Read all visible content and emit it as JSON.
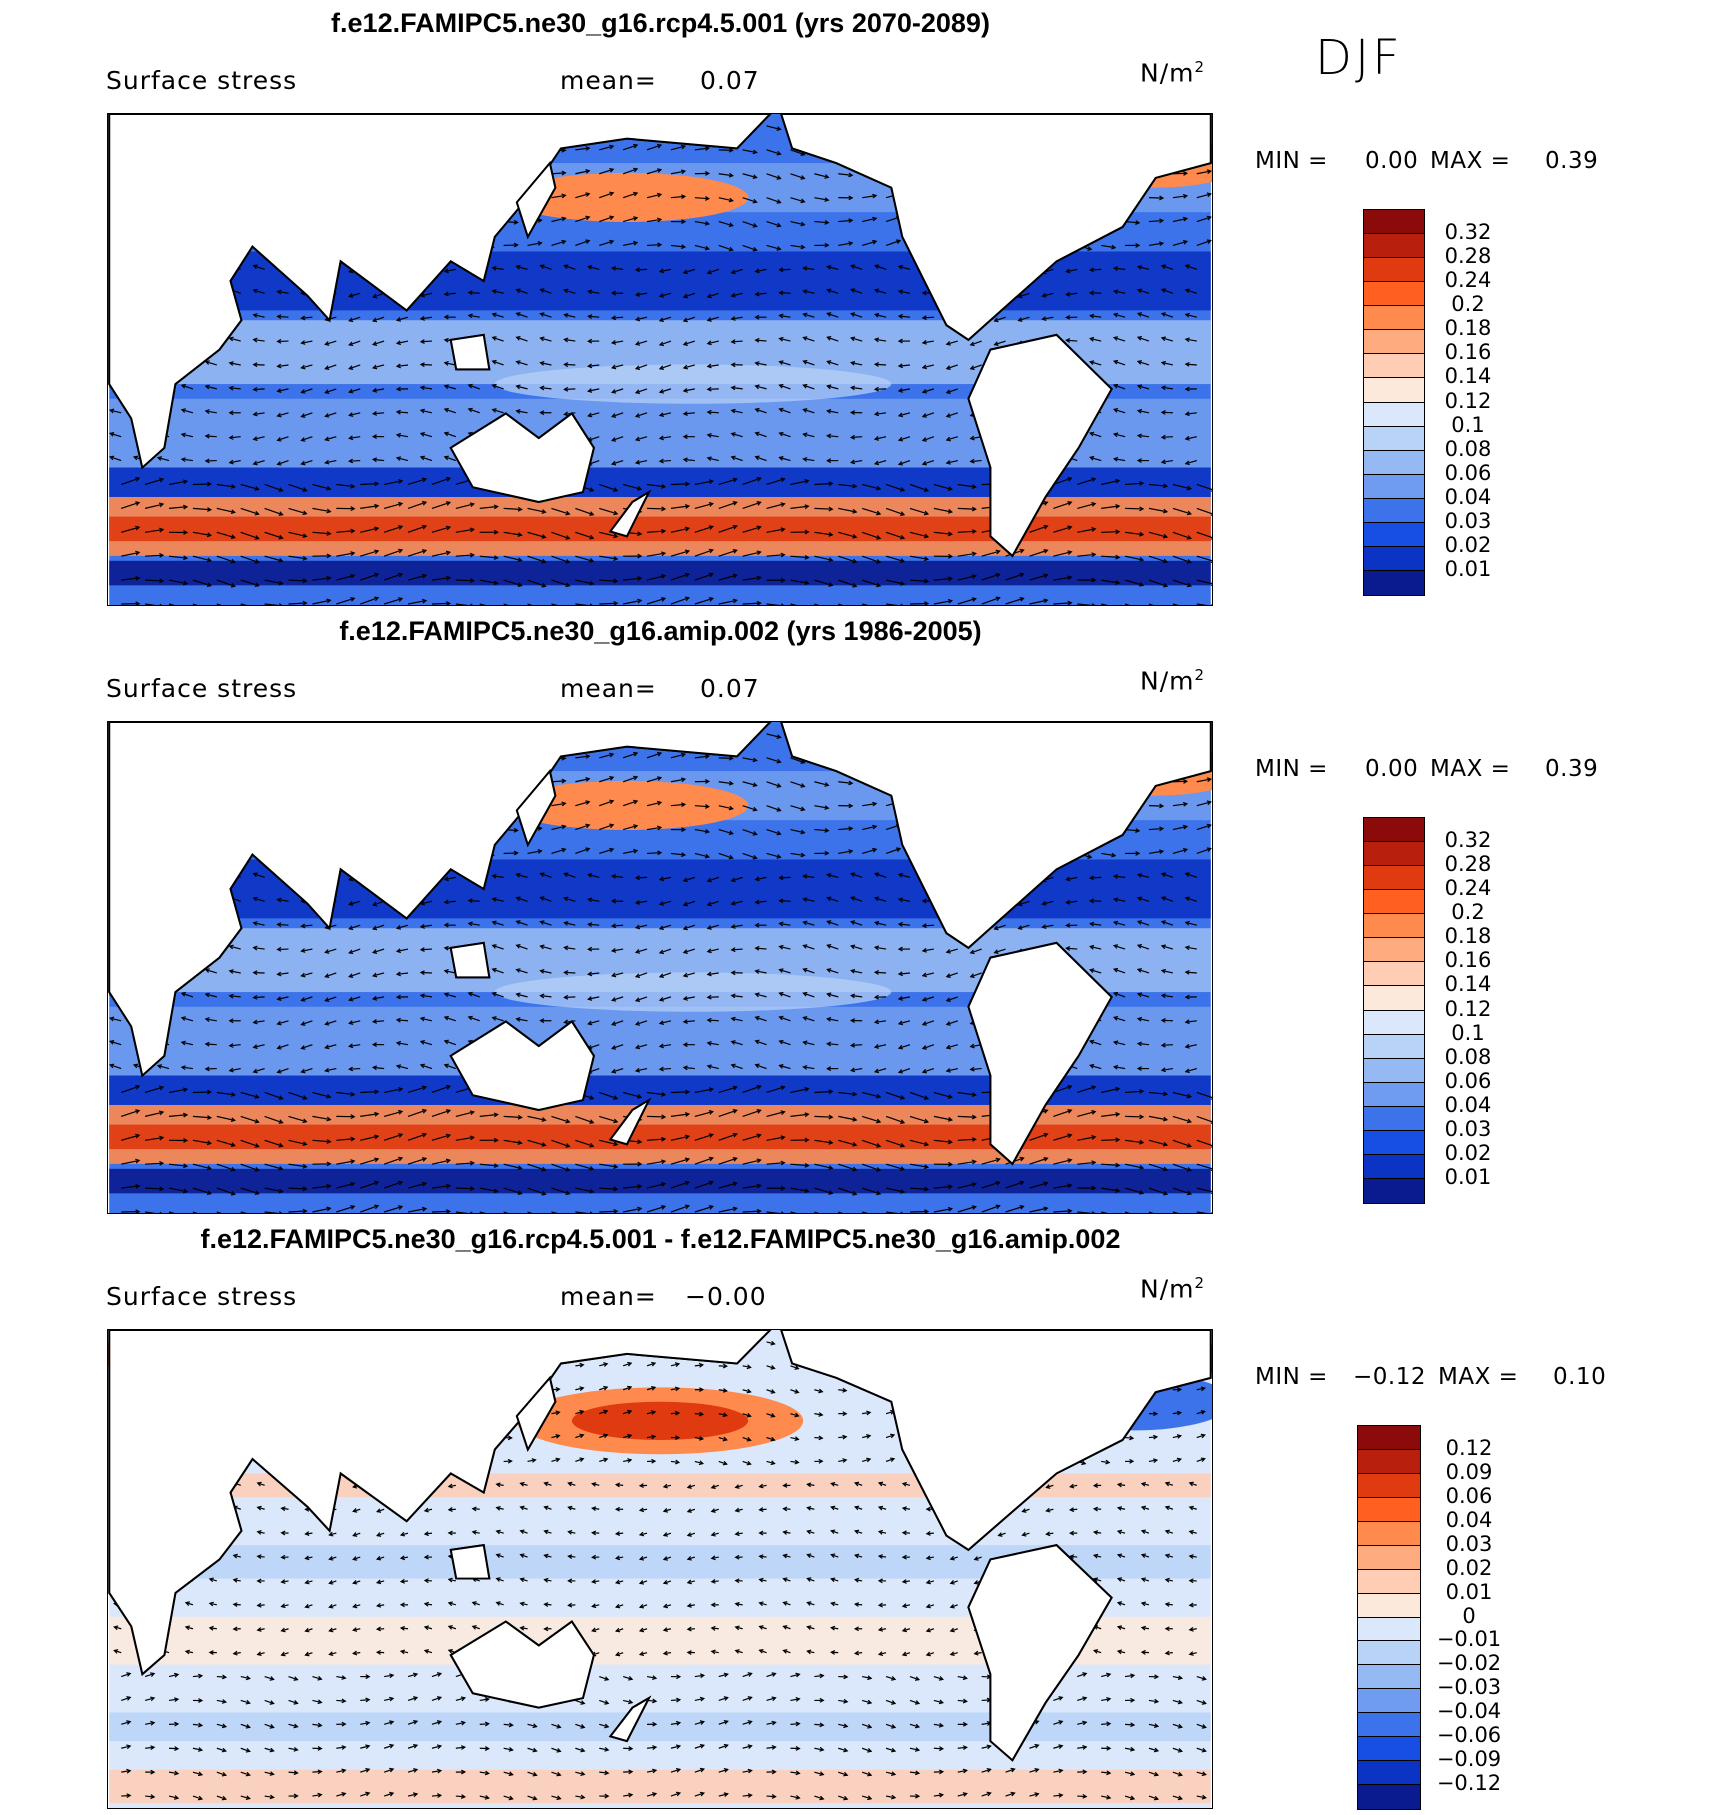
{
  "season": "DJF",
  "panels": [
    {
      "title": "f.e12.FAMIPC5.ne30_g16.rcp4.5.001 (yrs 2070-2089)",
      "variable": "Surface stress",
      "mean_label": "mean=",
      "mean_value": "0.07",
      "units": "N/m",
      "units_exp": "2",
      "min_label": "MIN =",
      "min_value": "0.00",
      "max_label": "MAX =",
      "max_value": "0.39",
      "colorbar": {
        "colors": [
          "#8b0a0a",
          "#b81f0d",
          "#e03a10",
          "#ff5f1f",
          "#ff8a4d",
          "#ffab80",
          "#ffcdb3",
          "#fde9dc",
          "#dbe8fb",
          "#b9d3f7",
          "#95b9f2",
          "#6f9cee",
          "#3d73ea",
          "#174ee3",
          "#0b33c4",
          "#0a1b8f"
        ],
        "ticks": [
          "0.32",
          "0.28",
          "0.24",
          "0.2",
          "0.18",
          "0.16",
          "0.14",
          "0.12",
          "0.1",
          "0.08",
          "0.06",
          "0.04",
          "0.03",
          "0.02",
          "0.01"
        ]
      }
    },
    {
      "title": "f.e12.FAMIPC5.ne30_g16.amip.002 (yrs 1986-2005)",
      "variable": "Surface stress",
      "mean_label": "mean=",
      "mean_value": "0.07",
      "units": "N/m",
      "units_exp": "2",
      "min_label": "MIN =",
      "min_value": "0.00",
      "max_label": "MAX =",
      "max_value": "0.39",
      "colorbar": {
        "colors": [
          "#8b0a0a",
          "#b81f0d",
          "#e03a10",
          "#ff5f1f",
          "#ff8a4d",
          "#ffab80",
          "#ffcdb3",
          "#fde9dc",
          "#dbe8fb",
          "#b9d3f7",
          "#95b9f2",
          "#6f9cee",
          "#3d73ea",
          "#174ee3",
          "#0b33c4",
          "#0a1b8f"
        ],
        "ticks": [
          "0.32",
          "0.28",
          "0.24",
          "0.2",
          "0.18",
          "0.16",
          "0.14",
          "0.12",
          "0.1",
          "0.08",
          "0.06",
          "0.04",
          "0.03",
          "0.02",
          "0.01"
        ]
      }
    },
    {
      "title": "f.e12.FAMIPC5.ne30_g16.rcp4.5.001 - f.e12.FAMIPC5.ne30_g16.amip.002",
      "variable": "Surface stress",
      "mean_label": "mean=",
      "mean_value": "−0.00",
      "units": "N/m",
      "units_exp": "2",
      "min_label": "MIN =",
      "min_value": "−0.12",
      "max_label": "MAX =",
      "max_value": "0.10",
      "colorbar": {
        "colors": [
          "#8b0a0a",
          "#b81f0d",
          "#e03a10",
          "#ff5f1f",
          "#ff8a4d",
          "#ffab80",
          "#ffcdb3",
          "#fde9dc",
          "#dbe8fb",
          "#b9d3f7",
          "#95b9f2",
          "#6f9cee",
          "#3d73ea",
          "#174ee3",
          "#0b33c4",
          "#0a1b8f"
        ],
        "ticks": [
          "0.12",
          "0.09",
          "0.06",
          "0.04",
          "0.03",
          "0.02",
          "0.01",
          "0",
          "−0.01",
          "−0.02",
          "−0.03",
          "−0.04",
          "−0.06",
          "−0.09",
          "−0.12"
        ]
      }
    }
  ],
  "colors": {
    "land": "#ffffff",
    "coast": "#000000",
    "ocean_abs_base": "#3d73ea",
    "ocean_diff_base": "#dbe8fb"
  }
}
